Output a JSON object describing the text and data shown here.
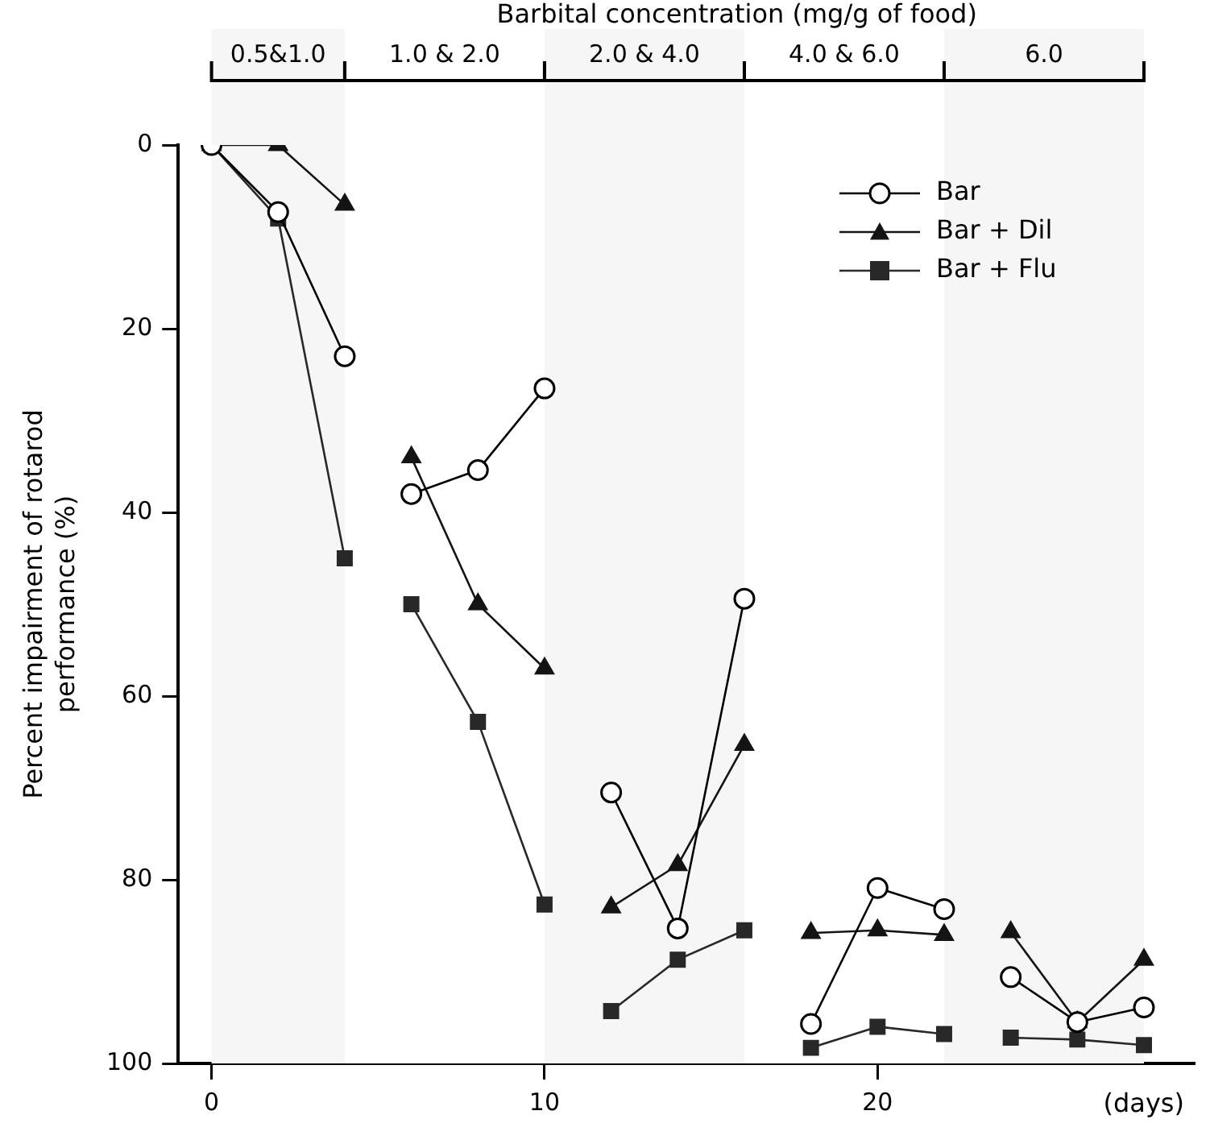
{
  "chart_data": {
    "type": "line",
    "xlabel": "(days)",
    "ylabel": "Percent impairment of rotarod performance (%)",
    "x2label": "Barbital concentration (mg/g of food)",
    "x": [
      0,
      2,
      4,
      5,
      6,
      8,
      10,
      11,
      12,
      14,
      16,
      17,
      18,
      20,
      22,
      23,
      24,
      26,
      28
    ],
    "series": [
      {
        "name": "Bar",
        "color": "#000000",
        "marker": "circle",
        "values": [
          0,
          7.3,
          23,
          null,
          38,
          35.4,
          26.5,
          null,
          70.5,
          85.3,
          49.4,
          null,
          95.7,
          80.9,
          83.2,
          null,
          90.6,
          95.5,
          93.9
        ]
      },
      {
        "name": "Bar + Dil",
        "color": "#141414",
        "marker": "triangle",
        "values": [
          0,
          0,
          6.5,
          null,
          34,
          50,
          57,
          null,
          83,
          78.4,
          65.3,
          null,
          85.8,
          85.5,
          86,
          null,
          85.7,
          95.5,
          88.7
        ]
      },
      {
        "name": "Bar + Flu",
        "color": "#282828",
        "marker": "square",
        "values": [
          0,
          8,
          45,
          null,
          50,
          62.8,
          82.7,
          null,
          94.3,
          88.7,
          85.5,
          null,
          98.3,
          96,
          96.8,
          null,
          97.2,
          97.4,
          98
        ]
      }
    ],
    "xlim": [
      -1,
      29.5
    ],
    "xticks": [
      0,
      10,
      20
    ],
    "ylim": [
      100,
      0
    ],
    "yticks": [
      0,
      20,
      40,
      60,
      80,
      100
    ],
    "bands": [
      {
        "axis": "x",
        "from": 0,
        "to": 4,
        "label": "0.5&1.0",
        "color": "#f6f6f6"
      },
      {
        "axis": "x",
        "from": 4,
        "to": 10,
        "label": "1.0 & 2.0",
        "color": "#ffffff"
      },
      {
        "axis": "x",
        "from": 10,
        "to": 16,
        "label": "2.0 & 4.0",
        "color": "#f6f6f6"
      },
      {
        "axis": "x",
        "from": 16,
        "to": 22,
        "label": "4.0 & 6.0",
        "color": "#ffffff"
      },
      {
        "axis": "x",
        "from": 22,
        "to": 28,
        "label": "6.0",
        "color": "#f6f6f6"
      }
    ],
    "grid": false,
    "legend": "top right",
    "line_style": "solid"
  }
}
